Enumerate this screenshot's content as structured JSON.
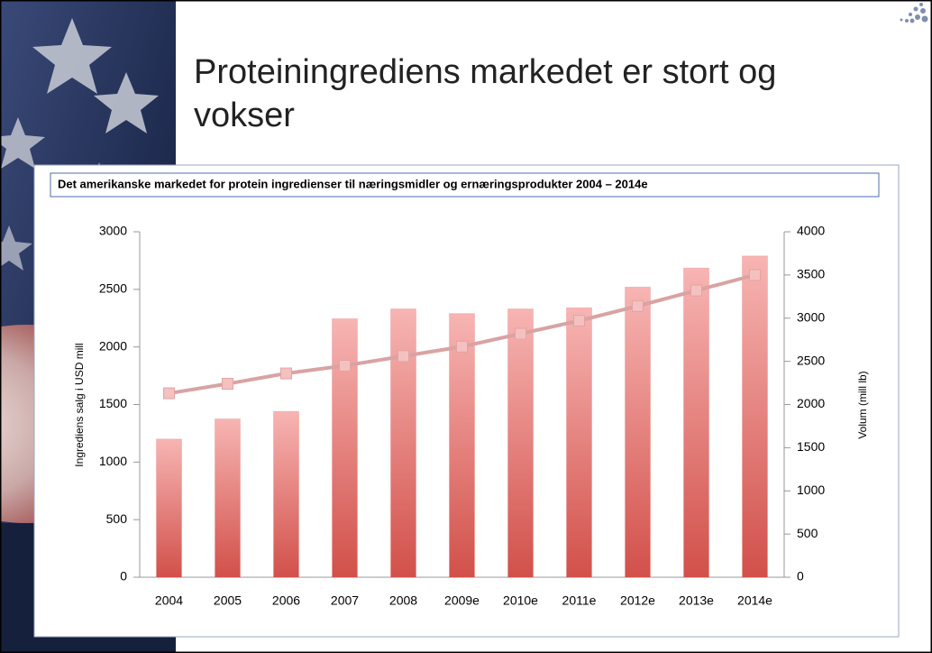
{
  "slide_title": "Proteiningrediens markedet er stort og vokser",
  "chart_data": {
    "type": "bar_line",
    "title": "Det amerikanske markedet for protein ingredienser til næringsmidler og ernæringsprodukter 2004 – 2014e",
    "y_label": "Ingrediens salg i USD mill",
    "y2_label": "Volum (mill lb)",
    "categories": [
      "2004",
      "2005",
      "2006",
      "2007",
      "2008",
      "2009e",
      "2010e",
      "2011e",
      "2012e",
      "2013e",
      "2014e"
    ],
    "series": [
      {
        "type": "bar",
        "color": "#d9534f",
        "values": [
          1200,
          1375,
          1440,
          2245,
          2330,
          2290,
          2330,
          2340,
          2520,
          2685,
          2790
        ]
      },
      {
        "type": "line",
        "color": "#d9a3a3",
        "axis": "y2",
        "values": [
          2130,
          2240,
          2360,
          2450,
          2560,
          2670,
          2820,
          2970,
          3140,
          3320,
          3500
        ]
      }
    ],
    "ylim": [
      0,
      3000
    ],
    "yticks": [
      0,
      500,
      1000,
      1500,
      2000,
      2500,
      3000
    ],
    "y2lim": [
      0,
      4000
    ],
    "y2ticks": [
      0,
      500,
      1000,
      1500,
      2000,
      2500,
      3000,
      3500,
      4000
    ]
  }
}
